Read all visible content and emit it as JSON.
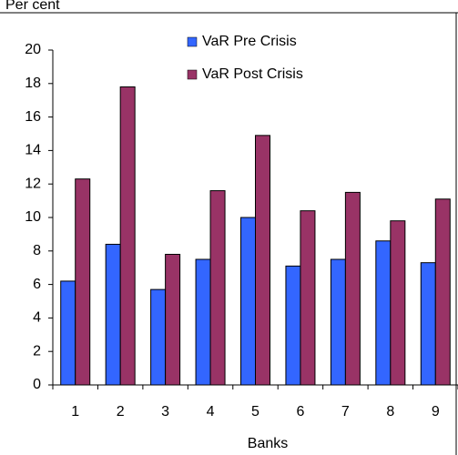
{
  "chart_data": {
    "type": "bar",
    "y_label": "Per cent",
    "x_label": "Banks",
    "categories": [
      "1",
      "2",
      "3",
      "4",
      "5",
      "6",
      "7",
      "8",
      "9"
    ],
    "series": [
      {
        "name": "VaR Pre Crisis",
        "color": "#3366ff",
        "values": [
          6.2,
          8.4,
          5.7,
          7.5,
          10.0,
          7.1,
          7.5,
          8.6,
          7.3
        ]
      },
      {
        "name": "VaR Post Crisis",
        "color": "#993366",
        "values": [
          12.3,
          17.8,
          7.8,
          11.6,
          14.9,
          10.4,
          11.5,
          9.8,
          11.1
        ]
      }
    ],
    "ylim": [
      0,
      20
    ],
    "yticks": [
      0,
      2,
      4,
      6,
      8,
      10,
      12,
      14,
      16,
      18,
      20
    ],
    "grid": false,
    "legend": "top"
  }
}
